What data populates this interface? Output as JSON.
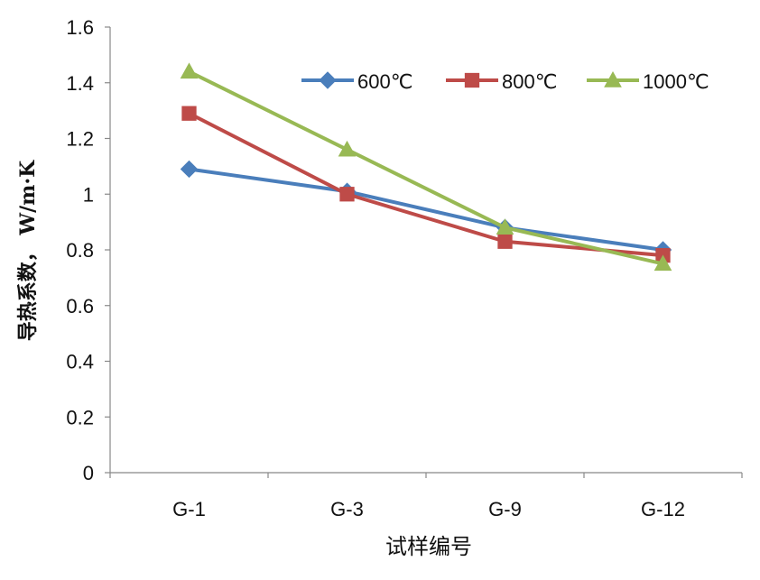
{
  "chart_data": {
    "type": "line",
    "title": "",
    "categories": [
      "G-1",
      "G-3",
      "G-9",
      "G-12"
    ],
    "series": [
      {
        "name": "600℃",
        "color": "#4A7EBB",
        "marker": "diamond",
        "values": [
          1.09,
          1.01,
          0.88,
          0.8
        ]
      },
      {
        "name": "800℃",
        "color": "#BE4B48",
        "marker": "square",
        "values": [
          1.29,
          1.0,
          0.83,
          0.78
        ]
      },
      {
        "name": "1000℃",
        "color": "#98B954",
        "marker": "triangle",
        "values": [
          1.44,
          1.16,
          0.88,
          0.75
        ]
      }
    ],
    "xlabel": "试样编号",
    "ylabel": "导热系数， W/m·K",
    "ylim": [
      0,
      1.6
    ],
    "yticks": [
      "0",
      "0.2",
      "0.4",
      "0.6",
      "0.8",
      "1",
      "1.2",
      "1.4",
      "1.6"
    ],
    "grid": false,
    "legend_position": "top-right"
  }
}
